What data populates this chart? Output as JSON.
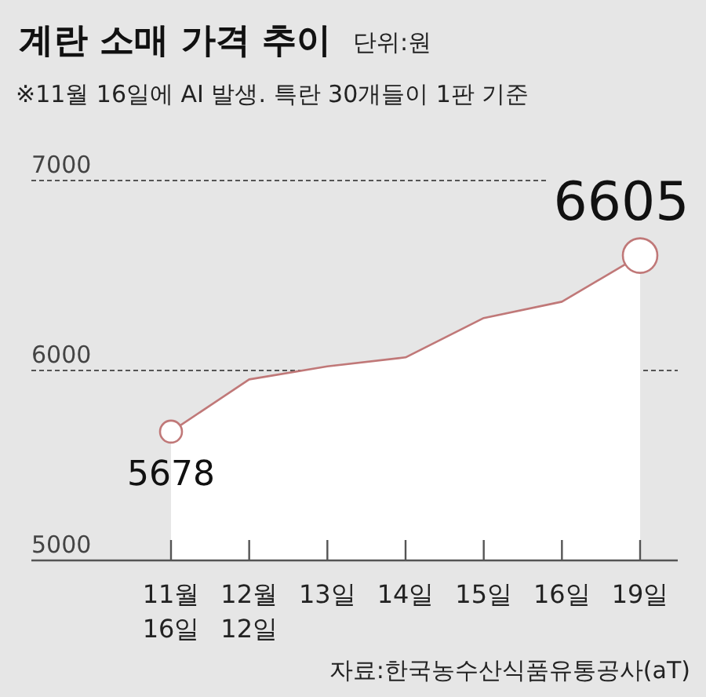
{
  "chart_data": {
    "type": "area",
    "title": "계란 소매 가격 추이",
    "ylabel": "단위:원",
    "subtitle": "※11월 16일에 AI 발생. 특란 30개들이 1판 기준",
    "categories": [
      "11월 16일",
      "12월 12일",
      "13일",
      "14일",
      "15일",
      "16일",
      "19일"
    ],
    "values": [
      5678,
      5953,
      6022,
      6069,
      6276,
      6362,
      6605
    ],
    "value_labels": [
      "5678",
      null,
      null,
      null,
      null,
      null,
      "6605"
    ],
    "color": "#c07878",
    "ylim": [
      5000,
      7000
    ],
    "yticks": [
      5000,
      6000,
      7000
    ],
    "grid": "y",
    "annotations": [
      "자료:한국농수산식품유통공사(aT)"
    ]
  }
}
